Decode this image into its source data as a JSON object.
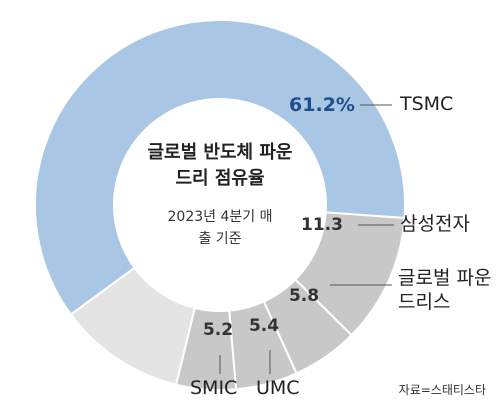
{
  "chart_data": {
    "type": "donut",
    "title": "글로벌 반도체 파운드리 점유율",
    "subtitle": "2023년 4분기 매출 기준",
    "categories": [
      "TSMC",
      "삼성전자",
      "글로벌 파운드리스",
      "UMC",
      "SMIC",
      null
    ],
    "values": [
      61.2,
      11.3,
      5.8,
      5.4,
      5.2,
      11.1
    ],
    "value_labels": [
      "61.2%",
      "11.3",
      "5.8",
      "5.4",
      "5.2",
      null
    ],
    "colors": [
      "#a9c6e4",
      "#c8c8c8",
      "#c8c8c8",
      "#c8c8c8",
      "#c8c8c8",
      "#e4e4e4"
    ],
    "source": "자료=스태티스타"
  }
}
